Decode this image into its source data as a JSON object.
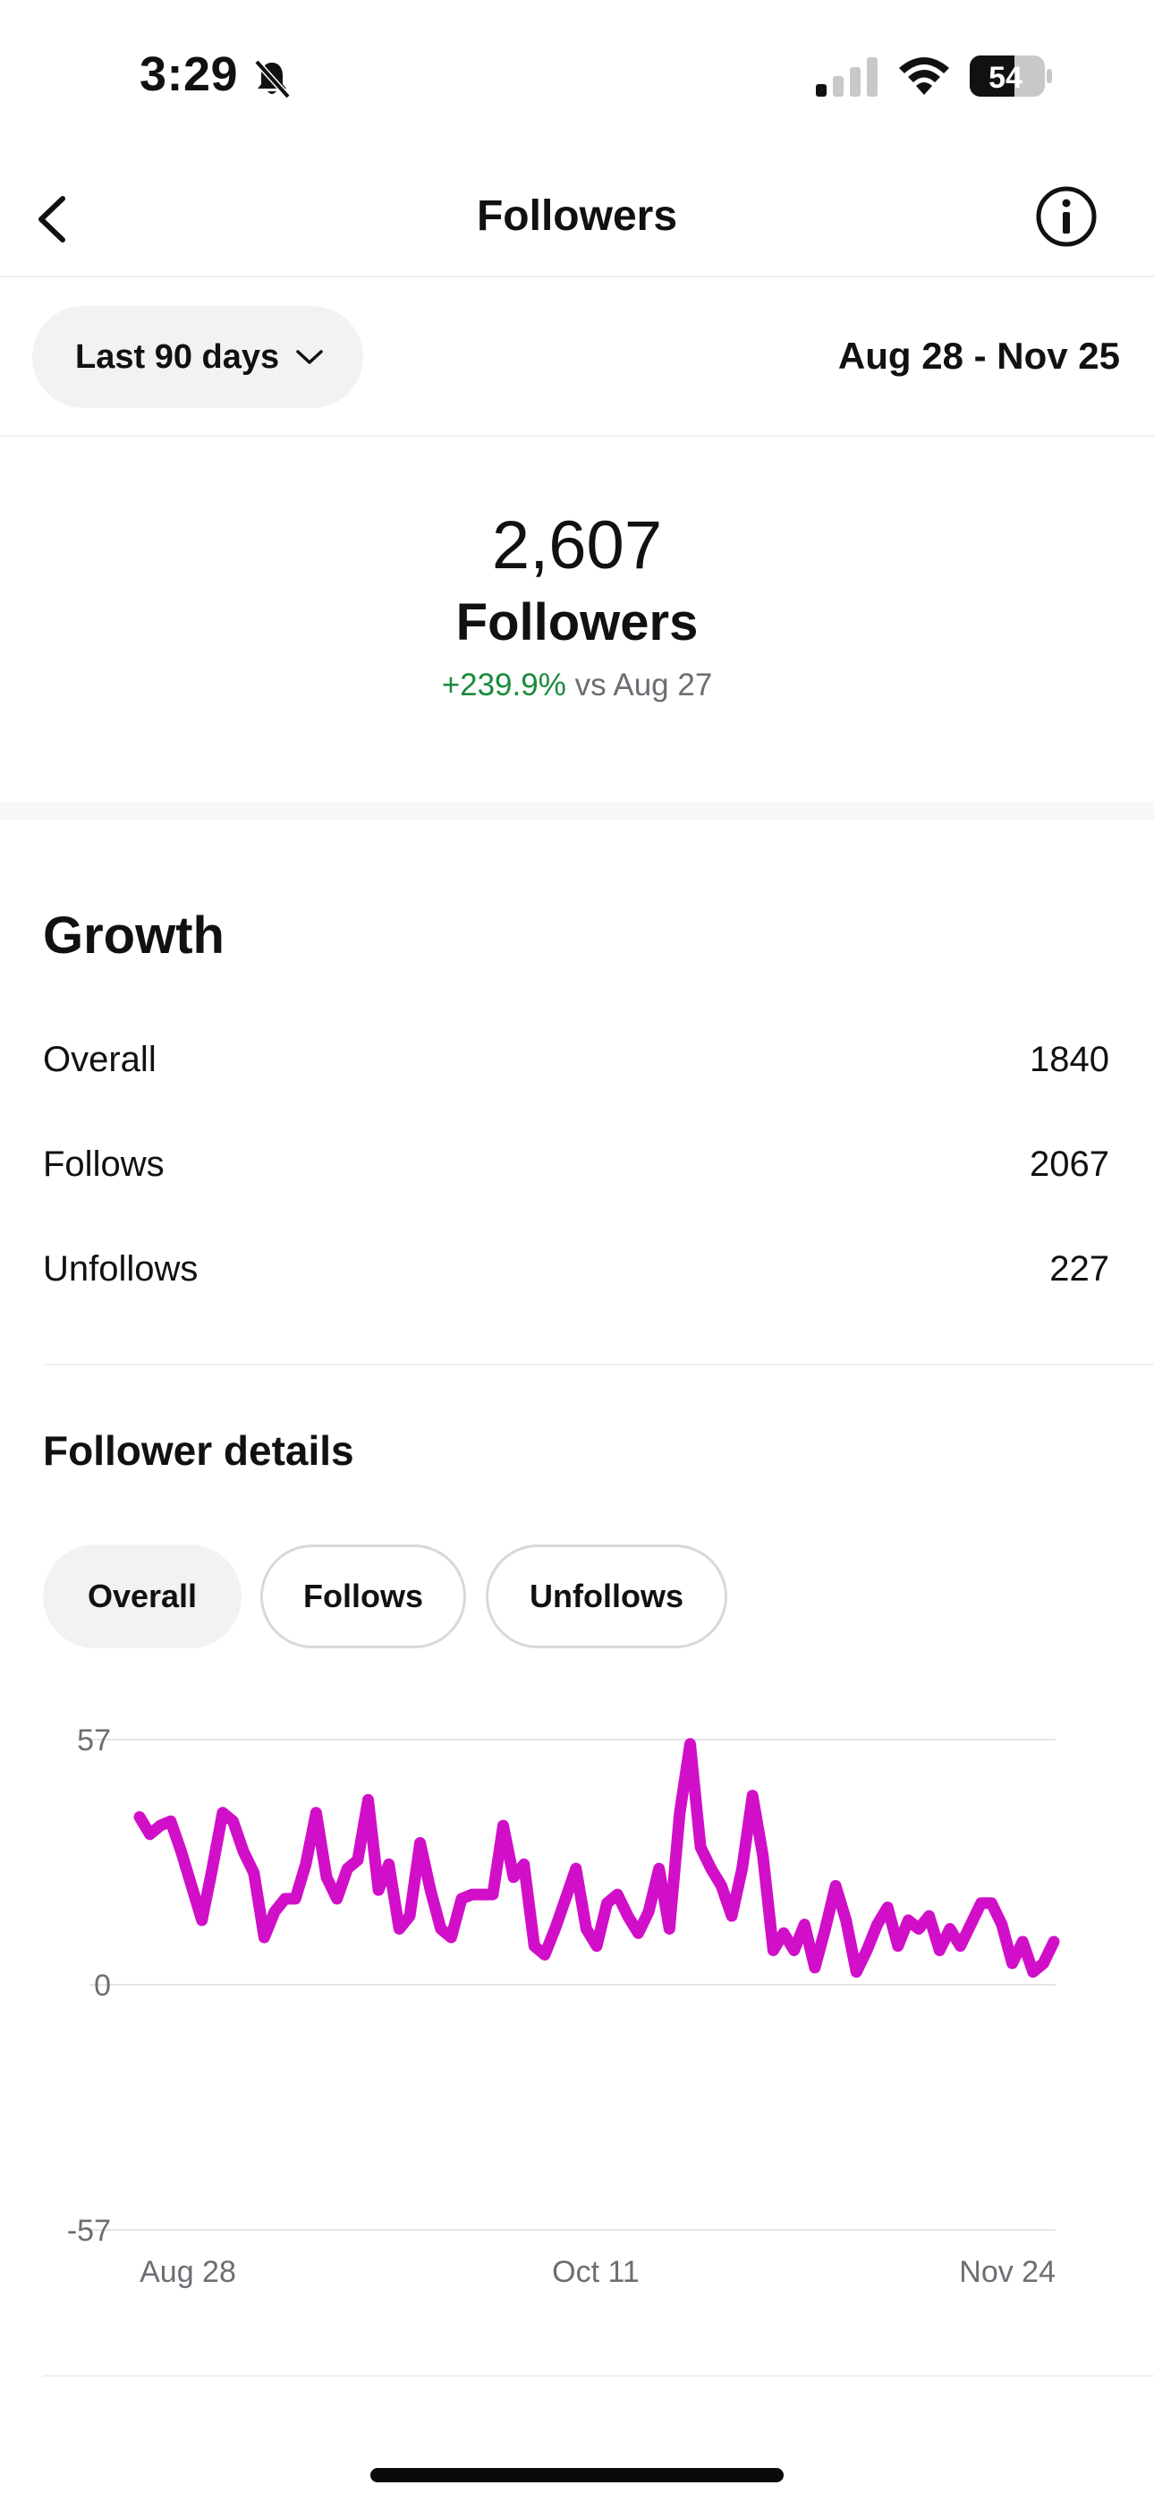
{
  "status_bar": {
    "time": "3:29",
    "battery": "54"
  },
  "nav": {
    "title": "Followers"
  },
  "filter": {
    "range_label": "Last 90 days",
    "date_range": "Aug 28 - Nov 25"
  },
  "summary": {
    "count": "2,607",
    "label": "Followers",
    "change_pct": "+239.9%",
    "change_ref": "vs Aug 27"
  },
  "growth": {
    "title": "Growth",
    "rows": [
      {
        "label": "Overall",
        "value": "1840"
      },
      {
        "label": "Follows",
        "value": "2067"
      },
      {
        "label": "Unfollows",
        "value": "227"
      }
    ]
  },
  "details": {
    "title": "Follower details",
    "chips": [
      {
        "label": "Overall",
        "active": true
      },
      {
        "label": "Follows",
        "active": false
      },
      {
        "label": "Unfollows",
        "active": false
      }
    ]
  },
  "colors": {
    "line": "#d10fc8",
    "positive": "#1a8a3b",
    "chip_active_bg": "#f1f2f4"
  },
  "chart_data": {
    "type": "line",
    "ylim": [
      -57,
      57
    ],
    "yticks": [
      "57",
      "0",
      "-57"
    ],
    "xticks": [
      "Aug 28",
      "Oct 11",
      "Nov 24"
    ],
    "grid": true,
    "series": [
      {
        "values": [
          39,
          35,
          37,
          38,
          31,
          23,
          15,
          27,
          40,
          38,
          31,
          26,
          11,
          17,
          20,
          20,
          28,
          40,
          25,
          20,
          27,
          29,
          43,
          22,
          28,
          13,
          16,
          33,
          22,
          13,
          11,
          20,
          21,
          21,
          21,
          37,
          25,
          28,
          9,
          7,
          13,
          20,
          27,
          13,
          9,
          19,
          21,
          16,
          12,
          17,
          27,
          13,
          40,
          56,
          32,
          27,
          23,
          16,
          27,
          44,
          30,
          8,
          12,
          8,
          14,
          4,
          13,
          23,
          15,
          3,
          8,
          14,
          18,
          9,
          15,
          13,
          16,
          8,
          13,
          9,
          14,
          19,
          19,
          14,
          5,
          10,
          3,
          5,
          10
        ]
      }
    ]
  }
}
